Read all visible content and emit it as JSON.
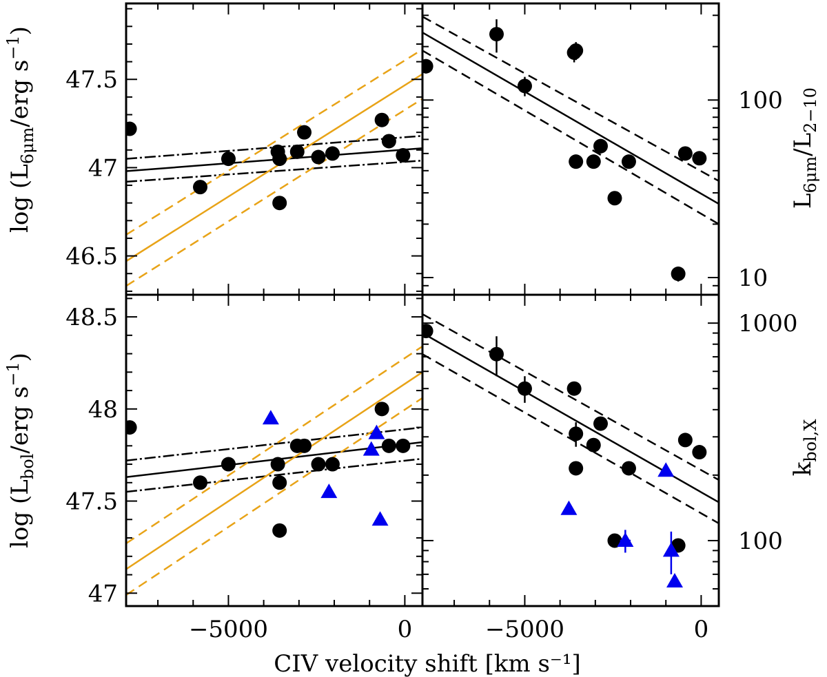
{
  "figure": {
    "xlabel": "CIV velocity shift [km s⁻¹]",
    "xticks": [
      "−5000",
      "0"
    ],
    "colors": {
      "black": "#000000",
      "orange": "#e8a317",
      "blue": "#0000ee"
    }
  },
  "chart_data": [
    {
      "type": "scatter",
      "panel": "top-left",
      "ylabel": "log (L6μm/erg s⁻¹)",
      "ylabel_parts": {
        "a": "log (L",
        "sub": "6μm",
        "b": "/erg s",
        "sup": "−1",
        "c": ")"
      },
      "xlim": [
        -7900,
        500
      ],
      "ylim": [
        46.28,
        47.93
      ],
      "yscale": "linear",
      "yticks": [
        "46.5",
        "47",
        "47.5"
      ],
      "ytick_values": [
        46.5,
        47.0,
        47.5
      ],
      "series": [
        {
          "marker": "circle",
          "color": "#000000",
          "x": [
            -7800,
            -5800,
            -5000,
            -3600,
            -3550,
            -3550,
            -3050,
            -2850,
            -2450,
            -2050,
            -650,
            -450,
            -50
          ],
          "y": [
            47.22,
            46.89,
            47.05,
            47.09,
            47.05,
            46.8,
            47.09,
            47.2,
            47.06,
            47.08,
            47.27,
            47.15,
            47.07
          ]
        }
      ],
      "lines": [
        {
          "style": "solid",
          "color": "#000000",
          "x": [
            -7900,
            500
          ],
          "y": [
            46.98,
            47.11
          ]
        },
        {
          "style": "dash-dot",
          "color": "#000000",
          "x": [
            -7900,
            500
          ],
          "y": [
            47.05,
            47.18
          ]
        },
        {
          "style": "dash-dot",
          "color": "#000000",
          "x": [
            -7900,
            500
          ],
          "y": [
            46.92,
            47.04
          ]
        },
        {
          "style": "solid",
          "color": "#e8a317",
          "x": [
            -7900,
            500
          ],
          "y": [
            46.47,
            47.53
          ]
        },
        {
          "style": "dashed",
          "color": "#e8a317",
          "x": [
            -7900,
            500
          ],
          "y": [
            46.62,
            47.67
          ]
        },
        {
          "style": "dashed",
          "color": "#e8a317",
          "x": [
            -7900,
            500
          ],
          "y": [
            46.33,
            47.39
          ]
        }
      ]
    },
    {
      "type": "scatter",
      "panel": "top-right",
      "ylabel": "L6μm/L2−10",
      "ylabel_parts": {
        "a": "L",
        "sub": "6μm",
        "b": "/L",
        "sub2": "2−10"
      },
      "xlim": [
        -7900,
        500
      ],
      "ylim": [
        8,
        350
      ],
      "yscale": "log",
      "yticks": [
        "10",
        "100"
      ],
      "ytick_values": [
        10,
        100
      ],
      "series": [
        {
          "marker": "circle",
          "color": "#000000",
          "x": [
            -7800,
            -5800,
            -5000,
            -3600,
            -3550,
            -3550,
            -3050,
            -2850,
            -2450,
            -2050,
            -650,
            -450,
            -50
          ],
          "y": [
            155,
            235,
            120,
            185,
            190,
            45,
            45,
            55,
            28,
            45,
            10.5,
            50,
            47
          ],
          "yerr": [
            14,
            50,
            15,
            22,
            22,
            4,
            4,
            5,
            2,
            4,
            1,
            4,
            4
          ]
        }
      ],
      "lines": [
        {
          "style": "solid",
          "color": "#000000",
          "x": [
            -7900,
            500
          ],
          "y": [
            240,
            26
          ]
        },
        {
          "style": "dashed",
          "color": "#000000",
          "x": [
            -7900,
            500
          ],
          "y": [
            295,
            35
          ]
        },
        {
          "style": "dashed",
          "color": "#000000",
          "x": [
            -7900,
            500
          ],
          "y": [
            190,
            20
          ]
        }
      ]
    },
    {
      "type": "scatter",
      "panel": "bottom-left",
      "ylabel": "log (Lbol/erg s⁻¹)",
      "ylabel_parts": {
        "a": "log (L",
        "sub": "bol",
        "b": "/erg s",
        "sup": "−1",
        "c": ")"
      },
      "xlim": [
        -7900,
        500
      ],
      "ylim": [
        46.93,
        48.62
      ],
      "yscale": "linear",
      "yticks": [
        "47",
        "47.5",
        "48",
        "48.5"
      ],
      "ytick_values": [
        47.0,
        47.5,
        48.0,
        48.5
      ],
      "series": [
        {
          "marker": "circle",
          "color": "#000000",
          "x": [
            -7800,
            -5800,
            -5000,
            -3600,
            -3550,
            -3550,
            -3050,
            -2850,
            -2450,
            -2050,
            -650,
            -450,
            -50
          ],
          "y": [
            47.9,
            47.6,
            47.7,
            47.7,
            47.6,
            47.34,
            47.8,
            47.8,
            47.7,
            47.7,
            48.0,
            47.8,
            47.8
          ]
        },
        {
          "marker": "triangle",
          "color": "#0000ee",
          "x": [
            -3800,
            -2150,
            -950,
            -800,
            -700
          ],
          "y": [
            47.95,
            47.55,
            47.78,
            47.87,
            47.4
          ]
        }
      ],
      "lines": [
        {
          "style": "solid",
          "color": "#000000",
          "x": [
            -7900,
            500
          ],
          "y": [
            47.63,
            47.82
          ]
        },
        {
          "style": "dash-dot",
          "color": "#000000",
          "x": [
            -7900,
            500
          ],
          "y": [
            47.72,
            47.9
          ]
        },
        {
          "style": "dash-dot",
          "color": "#000000",
          "x": [
            -7900,
            500
          ],
          "y": [
            47.55,
            47.73
          ]
        },
        {
          "style": "solid",
          "color": "#e8a317",
          "x": [
            -7900,
            500
          ],
          "y": [
            47.13,
            48.2
          ]
        },
        {
          "style": "dashed",
          "color": "#e8a317",
          "x": [
            -7900,
            500
          ],
          "y": [
            47.27,
            48.34
          ]
        },
        {
          "style": "dashed",
          "color": "#e8a317",
          "x": [
            -7900,
            500
          ],
          "y": [
            46.99,
            48.06
          ]
        }
      ]
    },
    {
      "type": "scatter",
      "panel": "bottom-right",
      "ylabel": "kbol,X",
      "ylabel_parts": {
        "a": "k",
        "sub": "bol,X"
      },
      "xlim": [
        -7900,
        500
      ],
      "ylim": [
        50,
        1350
      ],
      "yscale": "log",
      "yticks": [
        "100",
        "1000"
      ],
      "ytick_values": [
        100,
        1000
      ],
      "series": [
        {
          "marker": "circle",
          "color": "#000000",
          "x": [
            -7800,
            -5800,
            -5000,
            -3600,
            -3550,
            -3550,
            -3050,
            -2850,
            -2450,
            -2050,
            -650,
            -450,
            -50
          ],
          "y": [
            920,
            720,
            500,
            500,
            310,
            215,
            275,
            345,
            100,
            215,
            95,
            290,
            255
          ],
          "yerr": [
            0,
            150,
            70,
            0,
            40,
            0,
            0,
            0,
            0,
            0,
            0,
            0,
            0
          ]
        },
        {
          "marker": "triangle",
          "color": "#0000ee",
          "x": [
            -3750,
            -2150,
            -850,
            -750,
            -1000
          ],
          "y": [
            140,
            100,
            90,
            65,
            210
          ],
          "yerr": [
            0,
            12,
            20,
            0,
            0
          ],
          "xerr": [
            0,
            150,
            0,
            0,
            0
          ]
        }
      ],
      "lines": [
        {
          "style": "solid",
          "color": "#000000",
          "x": [
            -7900,
            500
          ],
          "y": [
            900,
            150
          ]
        },
        {
          "style": "dashed",
          "color": "#000000",
          "x": [
            -7900,
            500
          ],
          "y": [
            1100,
            190
          ]
        },
        {
          "style": "dashed",
          "color": "#000000",
          "x": [
            -7900,
            500
          ],
          "y": [
            720,
            120
          ]
        }
      ]
    }
  ]
}
